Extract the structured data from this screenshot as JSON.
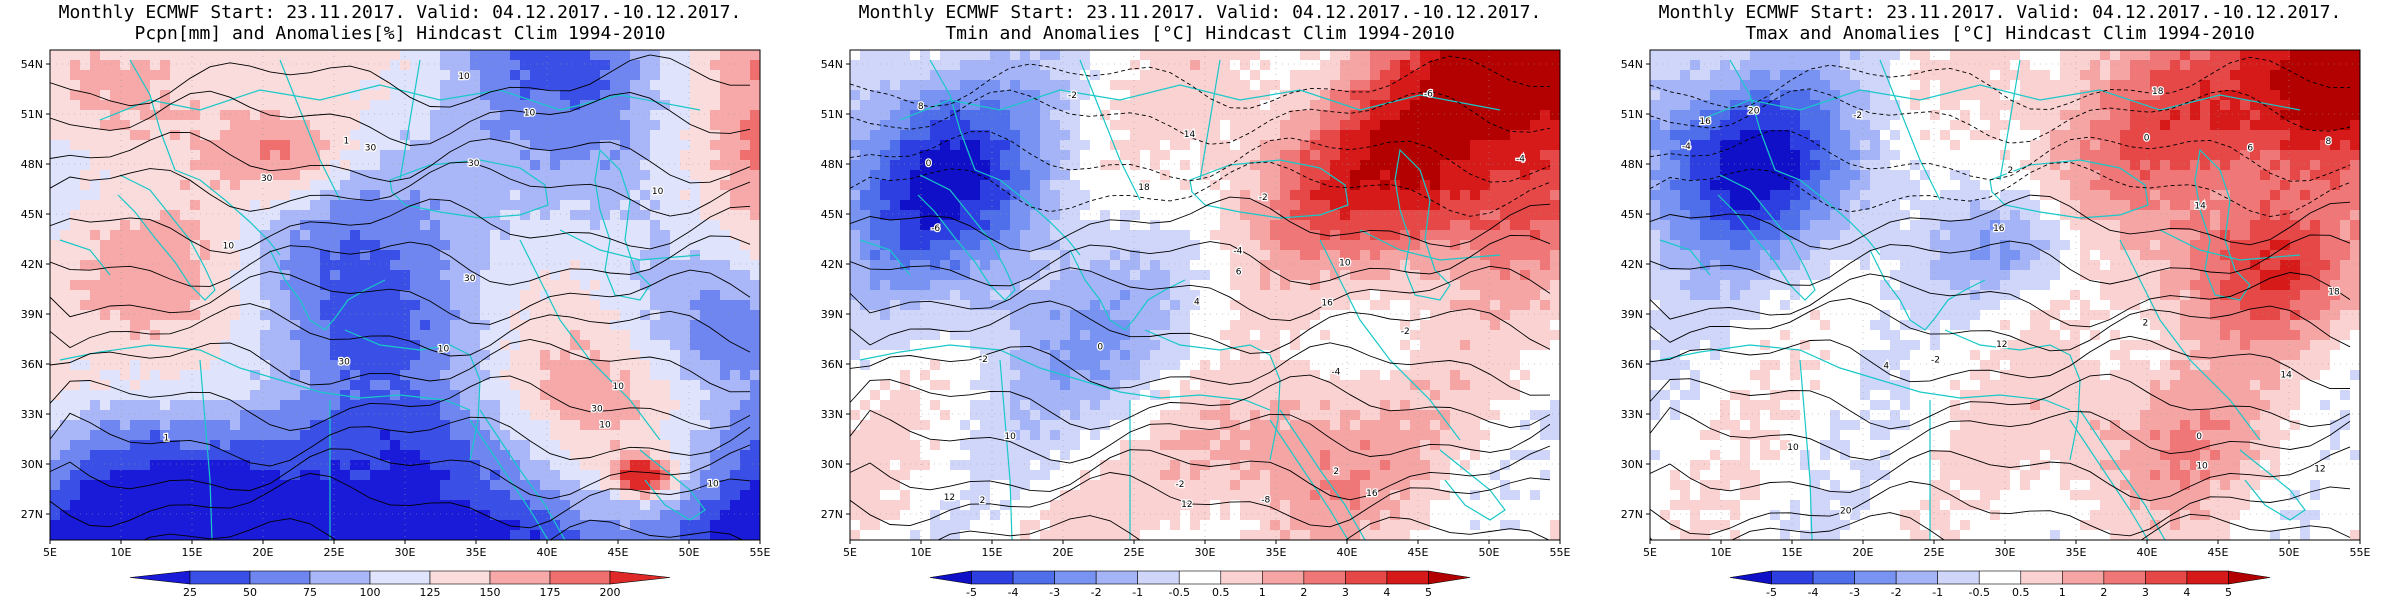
{
  "panels": [
    {
      "id": "pcpn",
      "title_line1": "Monthly ECMWF Start: 23.11.2017. Valid: 04.12.2017.-10.12.2017.",
      "title_line2": "Pcpn[mm] and Anomalies[%] Hindcast Clim 1994-2010",
      "colorbar_labels": [
        "25",
        "50",
        "75",
        "100",
        "125",
        "150",
        "175",
        "200"
      ],
      "colorbar_colors": [
        "#1a1ad9",
        "#3a4fe6",
        "#6f86f0",
        "#a9b6f7",
        "#dfe3fb",
        "#fbdcdc",
        "#f7a8a8",
        "#ef6f6f",
        "#e02a2a"
      ],
      "contour_labels": [
        "10",
        "10",
        "10",
        "30",
        "30",
        "30",
        "30",
        "30",
        "10",
        "10",
        "1",
        "1",
        "10",
        "10",
        "30",
        "10"
      ],
      "field": "precip"
    },
    {
      "id": "tmin",
      "title_line1": "Monthly ECMWF Start: 23.11.2017. Valid: 04.12.2017.-10.12.2017.",
      "title_line2": "Tmin and Anomalies [°C] Hindcast Clim 1994-2010",
      "colorbar_labels": [
        "-5",
        "-4",
        "-3",
        "-2",
        "-1",
        "-0.5",
        "0.5",
        "1",
        "2",
        "3",
        "4",
        "5"
      ],
      "colorbar_colors": [
        "#1010c8",
        "#2d3fe0",
        "#4f6eea",
        "#7893f1",
        "#a4b4f6",
        "#cfd6fa",
        "#ffffff",
        "#fbd2d2",
        "#f6a5a5",
        "#ef7777",
        "#e64848",
        "#d61a1a",
        "#b30000"
      ],
      "contour_labels": [
        "-2",
        "-4",
        "-6",
        "-4",
        "-2",
        "0",
        "2",
        "-4",
        "-6",
        "-2",
        "-8",
        "10",
        "12",
        "14",
        "16",
        "12",
        "16",
        "8",
        "10",
        "6",
        "4",
        "-2",
        "18",
        "0",
        "2",
        "-2"
      ],
      "field": "tmin"
    },
    {
      "id": "tmax",
      "title_line1": "Monthly ECMWF Start: 23.11.2017. Valid: 04.12.2017.-10.12.2017.",
      "title_line2": "Tmax and Anomalies [°C] Hindcast Clim 1994-2010",
      "colorbar_labels": [
        "-5",
        "-4",
        "-3",
        "-2",
        "-1",
        "-0.5",
        "0.5",
        "1",
        "2",
        "3",
        "4",
        "5"
      ],
      "colorbar_colors": [
        "#1010c8",
        "#2d3fe0",
        "#4f6eea",
        "#7893f1",
        "#a4b4f6",
        "#cfd6fa",
        "#ffffff",
        "#fbd2d2",
        "#f6a5a5",
        "#ef7777",
        "#e64848",
        "#d61a1a",
        "#b30000"
      ],
      "contour_labels": [
        "-4",
        "-2",
        "0",
        "2",
        "4",
        "6",
        "8",
        "10",
        "12",
        "14",
        "16",
        "18",
        "20",
        "-2",
        "0",
        "2",
        "10",
        "12",
        "16",
        "18",
        "20",
        "14"
      ],
      "field": "tmax"
    }
  ],
  "axes": {
    "lat_labels": [
      "54N",
      "51N",
      "48N",
      "45N",
      "42N",
      "39N",
      "36N",
      "33N",
      "30N",
      "27N"
    ],
    "lon_labels": [
      "5E",
      "10E",
      "15E",
      "20E",
      "25E",
      "30E",
      "35E",
      "40E",
      "45E",
      "50E",
      "55E"
    ]
  },
  "colors": {
    "coastline": "#19c8c8",
    "contour": "#000000",
    "gridline": "#9a9a9a"
  }
}
